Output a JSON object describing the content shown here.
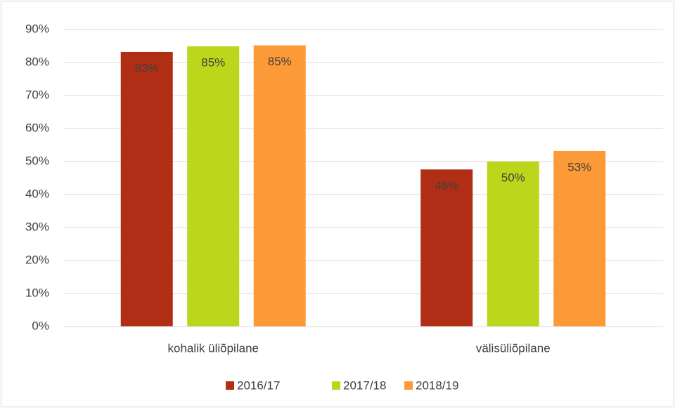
{
  "chart_data": {
    "type": "bar",
    "categories": [
      "kohalik üliõpilane",
      "välisüliõpilane"
    ],
    "series": [
      {
        "name": "2016/17",
        "color": "#b12e16",
        "values": [
          83.2,
          47.6
        ],
        "value_labels": [
          "83%",
          "48%"
        ]
      },
      {
        "name": "2017/18",
        "color": "#bcd61c",
        "values": [
          84.9,
          50.0
        ],
        "value_labels": [
          "85%",
          "50%"
        ]
      },
      {
        "name": "2018/19",
        "color": "#fd9a38",
        "values": [
          85.2,
          53.2
        ],
        "value_labels": [
          "85%",
          "53%"
        ]
      }
    ],
    "ylim": [
      0,
      90
    ],
    "yticks": [
      {
        "value": 0,
        "label": "0%"
      },
      {
        "value": 10,
        "label": "10%"
      },
      {
        "value": 20,
        "label": "20%"
      },
      {
        "value": 30,
        "label": "30%"
      },
      {
        "value": 40,
        "label": "40%"
      },
      {
        "value": 50,
        "label": "50%"
      },
      {
        "value": 60,
        "label": "60%"
      },
      {
        "value": 70,
        "label": "70%"
      },
      {
        "value": 80,
        "label": "80%"
      },
      {
        "value": 90,
        "label": "90%"
      }
    ],
    "grid": true,
    "legend": "bottom"
  }
}
